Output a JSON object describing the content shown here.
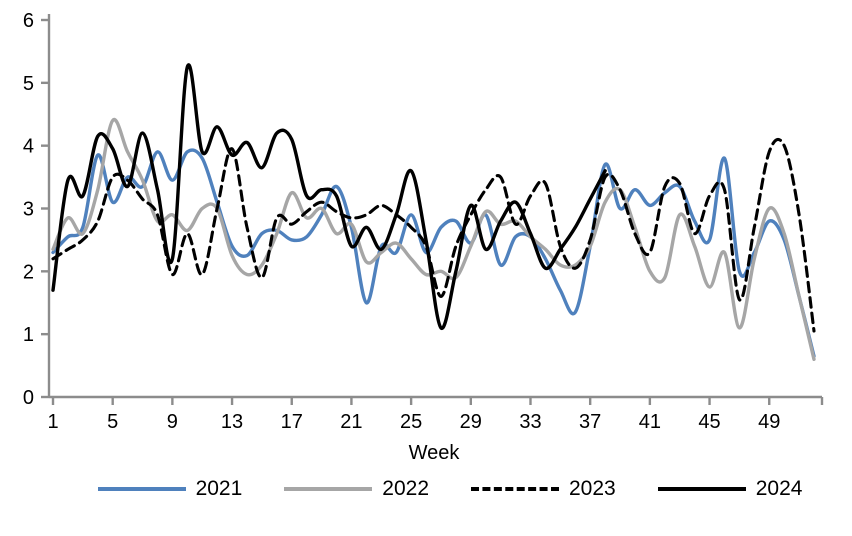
{
  "chart_data": {
    "type": "line",
    "title": "",
    "xlabel": "Week",
    "ylabel": "",
    "xlim": [
      1,
      52
    ],
    "ylim": [
      0,
      6
    ],
    "x_ticks": [
      1,
      5,
      9,
      13,
      17,
      21,
      25,
      29,
      33,
      37,
      41,
      45,
      49
    ],
    "y_ticks": [
      0,
      1,
      2,
      3,
      4,
      5,
      6
    ],
    "grid": false,
    "legend_position": "bottom",
    "axis_color": "#8C8C8C",
    "smoothed": true,
    "x_unit": "week_number",
    "series": [
      {
        "name": "2021",
        "color": "#4F81BD",
        "style": "solid",
        "start_week": 1,
        "values": [
          2.3,
          2.55,
          2.7,
          3.85,
          3.1,
          3.5,
          3.35,
          3.9,
          3.45,
          3.9,
          3.8,
          3.1,
          2.4,
          2.25,
          2.6,
          2.65,
          2.5,
          2.55,
          2.9,
          3.35,
          2.7,
          1.5,
          2.4,
          2.3,
          2.9,
          2.3,
          2.7,
          2.8,
          2.45,
          2.9,
          2.1,
          2.55,
          2.55,
          2.2,
          1.7,
          1.35,
          2.4,
          3.7,
          3.0,
          3.3,
          3.05,
          3.25,
          3.35,
          2.8,
          2.5,
          3.8,
          2.0,
          2.3,
          2.8,
          2.5,
          1.6,
          0.65
        ]
      },
      {
        "name": "2022",
        "color": "#A6A6A6",
        "style": "solid",
        "start_week": 1,
        "values": [
          2.35,
          2.85,
          2.6,
          3.3,
          4.4,
          3.9,
          3.45,
          2.8,
          2.9,
          2.65,
          3.0,
          3.0,
          2.25,
          1.95,
          2.1,
          2.6,
          3.25,
          2.85,
          3.0,
          2.6,
          2.75,
          2.15,
          2.3,
          2.45,
          2.2,
          1.95,
          2.0,
          1.9,
          2.4,
          2.95,
          2.75,
          2.8,
          2.55,
          2.35,
          2.1,
          2.1,
          2.4,
          3.1,
          3.3,
          2.7,
          2.0,
          1.9,
          2.9,
          2.4,
          1.75,
          2.3,
          1.1,
          2.2,
          3.0,
          2.6,
          1.6,
          0.6
        ]
      },
      {
        "name": "2023",
        "color": "#000000",
        "style": "dashed",
        "start_week": 1,
        "values": [
          2.2,
          2.35,
          2.5,
          2.8,
          3.5,
          3.45,
          3.15,
          2.9,
          1.95,
          2.6,
          1.95,
          3.0,
          3.95,
          2.7,
          1.9,
          2.85,
          2.75,
          2.95,
          3.1,
          2.95,
          2.85,
          2.9,
          3.05,
          2.9,
          2.7,
          2.4,
          1.6,
          2.4,
          2.9,
          3.3,
          3.5,
          2.75,
          3.2,
          3.4,
          2.4,
          2.05,
          2.5,
          3.5,
          3.3,
          2.6,
          2.3,
          3.35,
          3.4,
          2.6,
          3.2,
          3.3,
          1.55,
          2.7,
          3.9,
          4.0,
          2.9,
          1.05
        ]
      },
      {
        "name": "2024",
        "color": "#000000",
        "style": "solid",
        "start_week": 1,
        "values": [
          1.7,
          3.45,
          3.2,
          4.15,
          3.95,
          3.35,
          4.2,
          3.3,
          2.2,
          5.25,
          3.9,
          4.3,
          3.85,
          4.05,
          3.65,
          4.2,
          4.1,
          3.2,
          3.3,
          3.2,
          2.4,
          2.7,
          2.35,
          2.9,
          3.6,
          2.5,
          1.1,
          2.0,
          3.05,
          2.35,
          2.8,
          3.1,
          2.6,
          2.05,
          2.35,
          2.7,
          3.15,
          3.6
        ]
      }
    ]
  }
}
